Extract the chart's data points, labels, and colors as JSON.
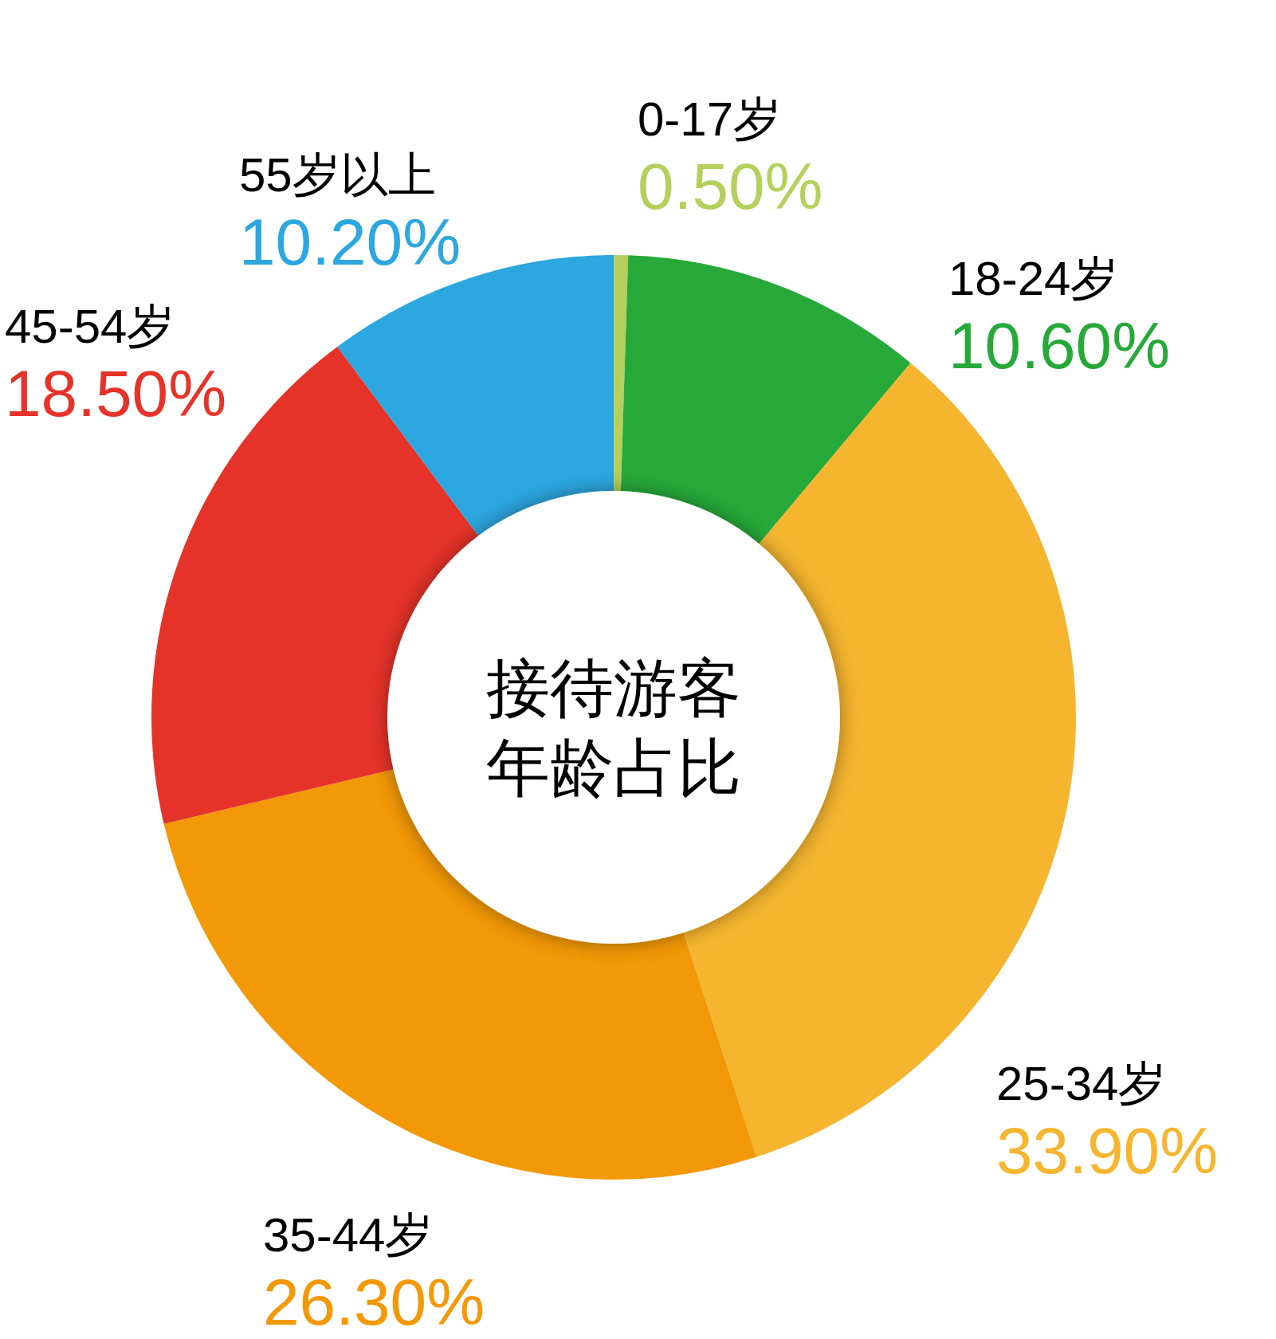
{
  "chart_data": {
    "type": "donut",
    "title": "接待游客年龄占比",
    "categories": [
      "0-17岁",
      "18-24岁",
      "25-34岁",
      "35-44岁",
      "45-54岁",
      "55岁以上"
    ],
    "values": [
      0.5,
      10.6,
      33.9,
      26.3,
      18.5,
      10.2
    ],
    "colors": [
      "#b5d05c",
      "#27a93a",
      "#f6b52f",
      "#f39806",
      "#e6332a",
      "#2ca7e0"
    ],
    "value_labels": [
      "0.50%",
      "10.60%",
      "33.90%",
      "26.30%",
      "18.50%",
      "10.20%"
    ]
  }
}
